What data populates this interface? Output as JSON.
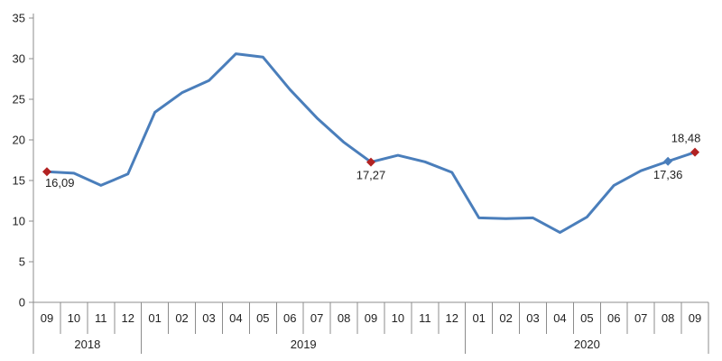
{
  "chart_data": {
    "type": "line",
    "title": "",
    "xlabel": "",
    "ylabel": "",
    "ylim": [
      0,
      35
    ],
    "y_ticks": [
      "0",
      "5",
      "10",
      "15",
      "20",
      "25",
      "30",
      "35"
    ],
    "categories": [
      "09",
      "10",
      "11",
      "12",
      "01",
      "02",
      "03",
      "04",
      "05",
      "06",
      "07",
      "08",
      "09",
      "10",
      "11",
      "12",
      "01",
      "02",
      "03",
      "04",
      "05",
      "06",
      "07",
      "08",
      "09"
    ],
    "year_groups": [
      {
        "label": "2018",
        "span": 4
      },
      {
        "label": "2019",
        "span": 12
      },
      {
        "label": "2020",
        "span": 9
      }
    ],
    "series": [
      {
        "values": [
          16.09,
          15.9,
          14.4,
          15.8,
          23.4,
          25.8,
          27.3,
          30.6,
          30.2,
          26.2,
          22.7,
          19.7,
          17.27,
          18.1,
          17.3,
          16.0,
          10.4,
          10.3,
          10.4,
          8.6,
          10.5,
          14.4,
          16.2,
          17.36,
          18.48
        ],
        "color": "#4a7ebb"
      }
    ],
    "point_labels": [
      {
        "index": 0,
        "text": "16,09",
        "marker_color": "#b22222"
      },
      {
        "index": 12,
        "text": "17,27",
        "marker_color": "#b22222"
      },
      {
        "index": 23,
        "text": "17,36",
        "marker_color": "#4a7ebb"
      },
      {
        "index": 24,
        "text": "18,48",
        "marker_color": "#b22222"
      }
    ],
    "grid": false,
    "legend": "none",
    "colors": {
      "line": "#4a7ebb",
      "axis": "#8c8c8c",
      "marker_highlight": "#b22222"
    }
  }
}
